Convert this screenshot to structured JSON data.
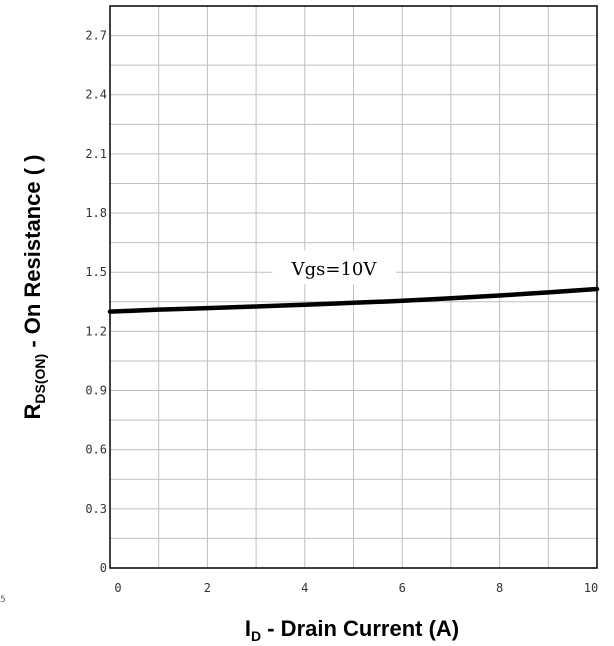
{
  "chart_data": {
    "type": "line",
    "xlabel": {
      "main": "I",
      "sub": "D",
      "rest": " - Drain Current (A)"
    },
    "ylabel": {
      "main": "R",
      "sub": "DS(ON)",
      "rest": " - On Resistance (  )"
    },
    "xlim": [
      0,
      10
    ],
    "ylim": [
      0,
      2.85
    ],
    "xticks": [
      "0",
      "2",
      "4",
      "6",
      "8",
      "10"
    ],
    "yticks": [
      "0",
      "0.3",
      "0.6",
      "0.9",
      "1.2",
      "1.5",
      "1.8",
      "2.1",
      "2.4",
      "2.7"
    ],
    "grid": true,
    "series": [
      {
        "name": "Vgs=10V",
        "color": "#000000",
        "x": [
          0,
          1,
          2,
          3,
          4,
          5,
          6,
          7,
          8,
          9,
          10
        ],
        "y": [
          1.3,
          1.31,
          1.318,
          1.326,
          1.335,
          1.345,
          1.355,
          1.368,
          1.382,
          1.398,
          1.415
        ]
      }
    ],
    "annotations": [
      {
        "text": "Vgs=10V",
        "x": 4.6,
        "y": 1.51
      }
    ]
  },
  "stray_text": "5"
}
